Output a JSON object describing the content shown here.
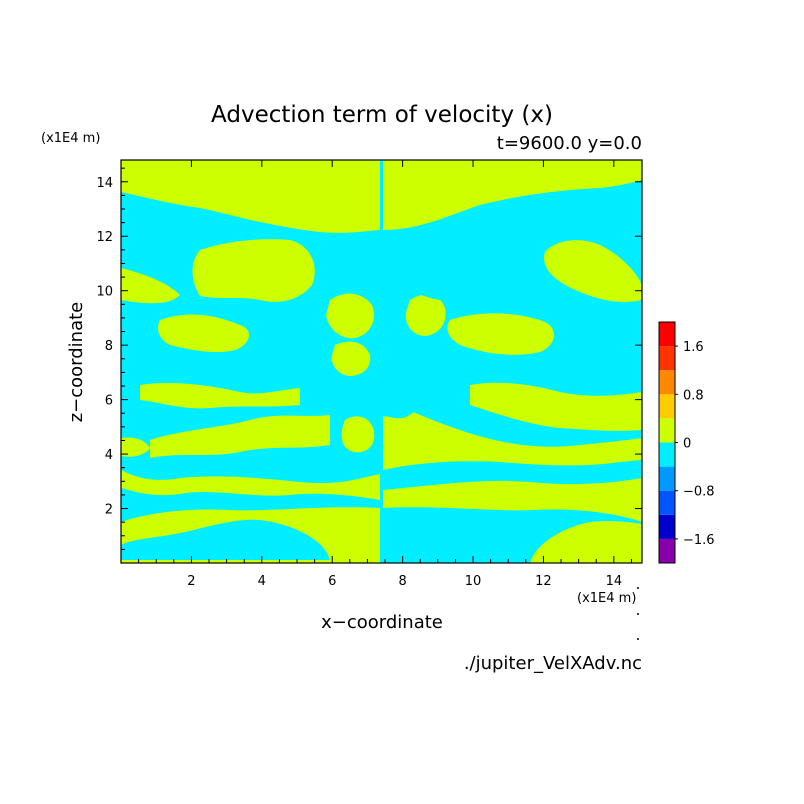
{
  "chart_data": {
    "type": "heatmap",
    "title": "Advection term of velocity (x)",
    "subtitle": "t=9600.0 y=0.0",
    "xlabel": "x−coordinate",
    "ylabel": "z−coordinate",
    "x_unit": "(x1E4 m)",
    "y_unit": "(x1E4 m)",
    "xlim": [
      0,
      14.8
    ],
    "ylim": [
      0,
      14.8
    ],
    "x_ticks": [
      2,
      4,
      6,
      8,
      10,
      12,
      14
    ],
    "y_ticks": [
      2,
      4,
      6,
      8,
      10,
      12,
      14
    ],
    "x_tick_labels": [
      "2",
      "4",
      "6",
      "8",
      "10",
      "12",
      "14"
    ],
    "y_tick_labels": [
      "2",
      "4",
      "6",
      "8",
      "10",
      "12",
      "14"
    ],
    "grid": false,
    "colorbar": {
      "levels": [
        -2.0,
        -1.6,
        -1.2,
        -0.8,
        -0.4,
        0,
        0.4,
        0.8,
        1.2,
        1.6,
        2.0
      ],
      "colors": [
        "#8800aa",
        "#0000cc",
        "#0055ff",
        "#0099ff",
        "#00eeff",
        "#ccff00",
        "#ffcc00",
        "#ff8800",
        "#ff3300",
        "#ff0000",
        "#ffaaaa"
      ],
      "tick_values": [
        1.6,
        0.8,
        0,
        -0.8,
        -1.6
      ],
      "tick_labels": [
        "1.6",
        "0.8",
        "0",
        "−0.8",
        "−1.6"
      ]
    },
    "dominant_value_classes": {
      "negative": "#00eeff",
      "positive": "#ccff00"
    },
    "source_file": "./jupiter_VelXAdv.nc"
  }
}
